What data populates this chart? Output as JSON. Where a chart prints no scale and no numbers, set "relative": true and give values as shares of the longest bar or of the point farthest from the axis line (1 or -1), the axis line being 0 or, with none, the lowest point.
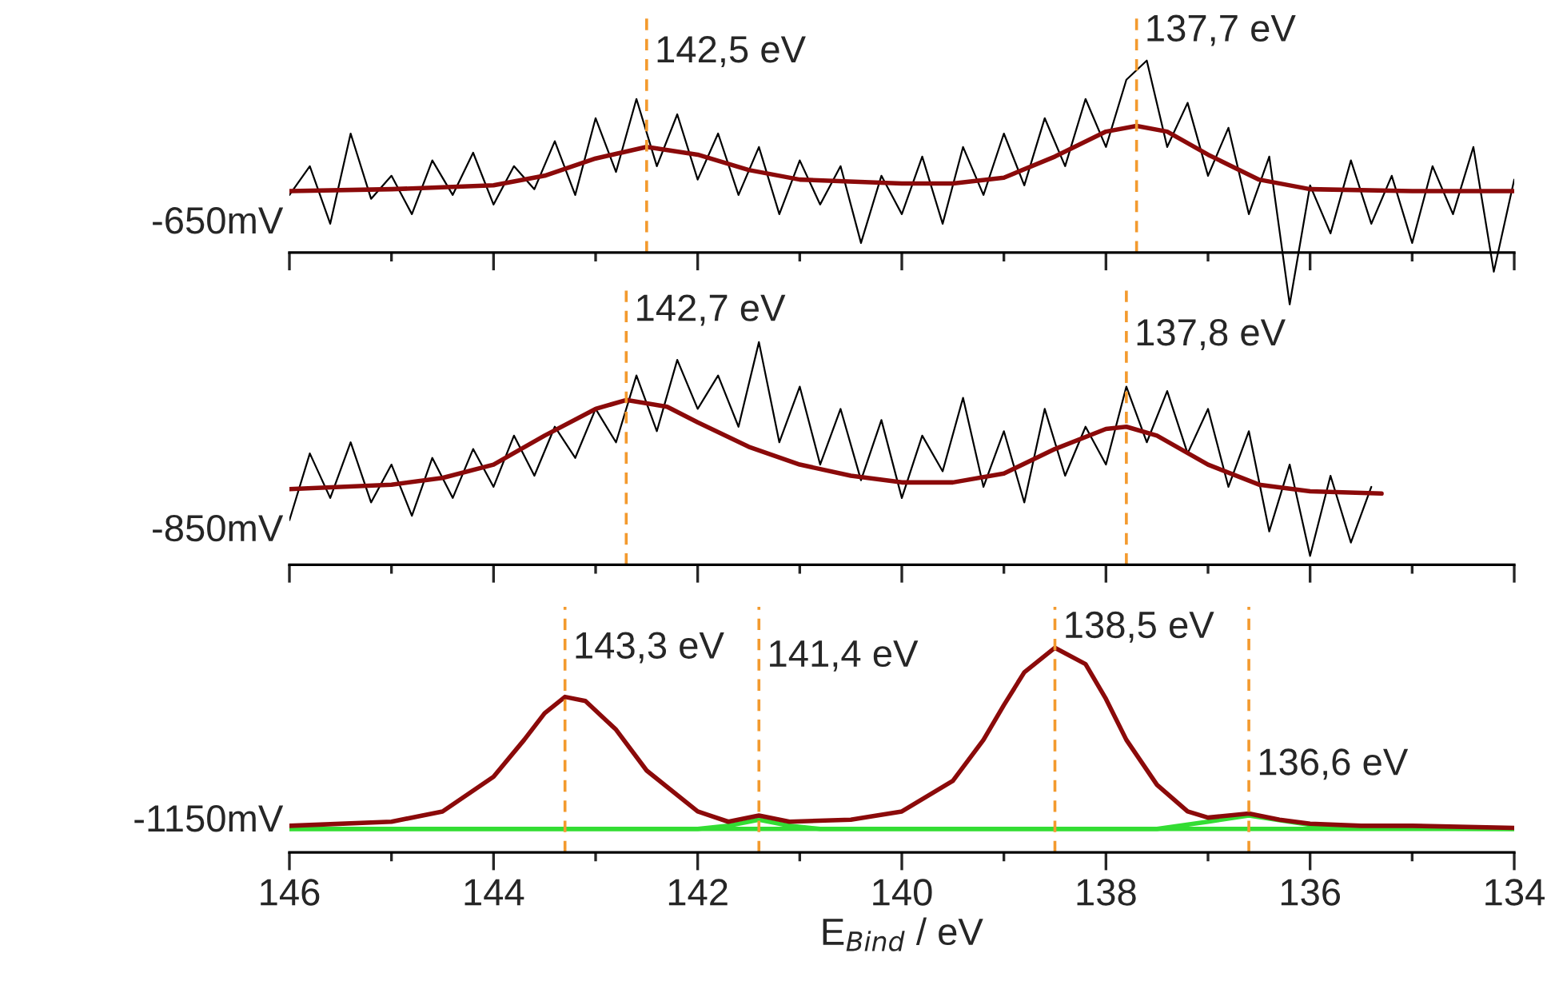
{
  "chart_data": [
    {
      "type": "line",
      "relative": true,
      "ylabel": "-650mV",
      "xlim": [
        146,
        134
      ],
      "tick_labels": false,
      "xticks": [
        146,
        {
          "value": 145,
          "label": null
        },
        144,
        {
          "value": 143,
          "label": null
        },
        142,
        {
          "value": 141,
          "label": null
        },
        140,
        {
          "value": 139,
          "label": null
        },
        138,
        {
          "value": 137,
          "label": null
        },
        136,
        {
          "value": 135,
          "label": null
        },
        134
      ],
      "series": [
        {
          "color": "#000000",
          "x": [
            146,
            145.8,
            145.6,
            145.4,
            145.2,
            145,
            144.8,
            144.6,
            144.4,
            144.2,
            144,
            143.8,
            143.6,
            143.4,
            143.2,
            143,
            142.8,
            142.6,
            142.4,
            142.2,
            142,
            141.8,
            141.6,
            141.4,
            141.2,
            141,
            140.8,
            140.6,
            140.4,
            140.2,
            140,
            139.8,
            139.6,
            139.4,
            139.2,
            139,
            138.8,
            138.6,
            138.4,
            138.2,
            138,
            137.8,
            137.6,
            137.4,
            137.2,
            137,
            136.8,
            136.6,
            136.4,
            136.2,
            136,
            135.8,
            135.6,
            135.4,
            135.2,
            135,
            134.8,
            134.6,
            134.4,
            134.2,
            134
          ],
          "values": [
            0.3,
            0.45,
            0.15,
            0.62,
            0.28,
            0.4,
            0.2,
            0.48,
            0.3,
            0.52,
            0.25,
            0.45,
            0.33,
            0.58,
            0.3,
            0.7,
            0.42,
            0.8,
            0.45,
            0.72,
            0.38,
            0.62,
            0.3,
            0.55,
            0.2,
            0.48,
            0.25,
            0.45,
            0.05,
            0.4,
            0.2,
            0.5,
            0.15,
            0.55,
            0.3,
            0.62,
            0.35,
            0.7,
            0.45,
            0.8,
            0.55,
            0.9,
            1.0,
            0.55,
            0.78,
            0.4,
            0.65,
            0.2,
            0.5,
            -0.27,
            0.35,
            0.1,
            0.48,
            0.15,
            0.4,
            0.05,
            0.45,
            0.2,
            0.55,
            -0.1,
            0.38
          ]
        },
        {
          "color": "#8b0a0a",
          "x": [
            146,
            145,
            144,
            143.5,
            143,
            142.5,
            142,
            141.5,
            141,
            140,
            139.5,
            139,
            138.5,
            138,
            137.7,
            137.4,
            137,
            136.5,
            136,
            135,
            134
          ],
          "values": [
            0.32,
            0.33,
            0.35,
            0.4,
            0.49,
            0.55,
            0.51,
            0.43,
            0.38,
            0.36,
            0.36,
            0.39,
            0.5,
            0.63,
            0.66,
            0.63,
            0.51,
            0.38,
            0.33,
            0.32,
            0.32
          ]
        }
      ],
      "ref_lines": [
        {
          "axis": "x",
          "value": 142.5,
          "label": "142,5 eV",
          "color": "#f39a2e",
          "line_style": "dashed"
        },
        {
          "axis": "x",
          "value": 137.7,
          "label": "137,7 eV",
          "color": "#f39a2e",
          "line_style": "dashed"
        }
      ]
    },
    {
      "type": "line",
      "relative": true,
      "ylabel": "-850mV",
      "xlim": [
        146,
        134
      ],
      "tick_labels": false,
      "xticks": [
        146,
        {
          "value": 145,
          "label": null
        },
        144,
        {
          "value": 143,
          "label": null
        },
        142,
        {
          "value": 141,
          "label": null
        },
        140,
        {
          "value": 139,
          "label": null
        },
        138,
        {
          "value": 137,
          "label": null
        },
        136,
        {
          "value": 135,
          "label": null
        },
        134
      ],
      "series": [
        {
          "color": "#000000",
          "x": [
            146,
            145.8,
            145.6,
            145.4,
            145.2,
            145,
            144.8,
            144.6,
            144.4,
            144.2,
            144,
            143.8,
            143.6,
            143.4,
            143.2,
            143,
            142.8,
            142.6,
            142.4,
            142.2,
            142,
            141.8,
            141.6,
            141.4,
            141.2,
            141,
            140.8,
            140.6,
            140.4,
            140.2,
            140,
            139.8,
            139.6,
            139.4,
            139.2,
            139,
            138.8,
            138.6,
            138.4,
            138.2,
            138,
            137.8,
            137.6,
            137.4,
            137.2,
            137,
            136.8,
            136.6,
            136.4,
            136.2,
            136,
            135.8,
            135.6,
            135.4
          ],
          "values": [
            0.2,
            0.5,
            0.3,
            0.55,
            0.28,
            0.45,
            0.22,
            0.48,
            0.3,
            0.52,
            0.35,
            0.58,
            0.4,
            0.62,
            0.48,
            0.7,
            0.55,
            0.85,
            0.6,
            0.92,
            0.7,
            0.85,
            0.62,
            1.0,
            0.55,
            0.8,
            0.45,
            0.7,
            0.38,
            0.65,
            0.3,
            0.58,
            0.42,
            0.75,
            0.35,
            0.6,
            0.28,
            0.7,
            0.4,
            0.62,
            0.45,
            0.8,
            0.55,
            0.78,
            0.5,
            0.7,
            0.35,
            0.6,
            0.15,
            0.45,
            0.04,
            0.4,
            0.1,
            0.35
          ]
        },
        {
          "color": "#8b0a0a",
          "x": [
            146,
            145,
            144.5,
            144,
            143.5,
            143,
            142.7,
            142.3,
            142,
            141.5,
            141,
            140.5,
            140,
            139.5,
            139,
            138.5,
            138,
            137.8,
            137.5,
            137,
            136.5,
            136,
            135.3
          ],
          "values": [
            0.34,
            0.36,
            0.39,
            0.45,
            0.58,
            0.7,
            0.74,
            0.71,
            0.64,
            0.53,
            0.45,
            0.4,
            0.37,
            0.37,
            0.41,
            0.52,
            0.61,
            0.62,
            0.58,
            0.45,
            0.36,
            0.33,
            0.32
          ]
        }
      ],
      "ref_lines": [
        {
          "axis": "x",
          "value": 142.7,
          "label": "142,7 eV",
          "color": "#f39a2e",
          "line_style": "dashed"
        },
        {
          "axis": "x",
          "value": 137.8,
          "label": "137,8 eV",
          "color": "#f39a2e",
          "line_style": "dashed"
        }
      ]
    },
    {
      "type": "line",
      "relative": true,
      "ylabel": "-1150mV",
      "xlabel": "E$_{Bind}$ / eV",
      "xlim": [
        146,
        134
      ],
      "xticks": [
        146,
        {
          "value": 145,
          "label": null
        },
        144,
        {
          "value": 143,
          "label": null
        },
        142,
        {
          "value": 141,
          "label": null
        },
        140,
        {
          "value": 139,
          "label": null
        },
        138,
        {
          "value": 137,
          "label": null
        },
        136,
        {
          "value": 135,
          "label": null
        },
        134
      ],
      "series": [
        {
          "color": "#33dd33",
          "x": [
            146,
            142,
            141.7,
            141.4,
            141.1,
            140.8,
            134
          ],
          "values": [
            0.115,
            0.115,
            0.13,
            0.16,
            0.13,
            0.115,
            0.115
          ]
        },
        {
          "color": "#33dd33",
          "x": [
            146,
            137.5,
            137,
            136.6,
            136.2,
            135.8,
            134
          ],
          "values": [
            0.115,
            0.115,
            0.15,
            0.18,
            0.15,
            0.12,
            0.115
          ]
        },
        {
          "color": "#8b0a0a",
          "x": [
            146,
            145,
            144.5,
            144,
            143.7,
            143.5,
            143.3,
            143.1,
            142.8,
            142.5,
            142,
            141.7,
            141.4,
            141.1,
            140.5,
            140,
            139.5,
            139.2,
            139,
            138.8,
            138.5,
            138.2,
            138,
            137.8,
            137.5,
            137.2,
            137,
            136.6,
            136.3,
            136,
            135.5,
            135,
            134
          ],
          "values": [
            0.13,
            0.15,
            0.2,
            0.37,
            0.55,
            0.68,
            0.76,
            0.74,
            0.6,
            0.4,
            0.2,
            0.15,
            0.18,
            0.15,
            0.16,
            0.2,
            0.35,
            0.55,
            0.72,
            0.88,
            1.0,
            0.92,
            0.75,
            0.55,
            0.33,
            0.2,
            0.17,
            0.19,
            0.16,
            0.14,
            0.13,
            0.13,
            0.12
          ]
        }
      ],
      "ref_lines": [
        {
          "axis": "x",
          "value": 143.3,
          "label": "143,3 eV",
          "color": "#f39a2e",
          "line_style": "dashed"
        },
        {
          "axis": "x",
          "value": 141.4,
          "label": "141,4 eV",
          "color": "#f39a2e",
          "line_style": "dashed"
        },
        {
          "axis": "x",
          "value": 138.5,
          "label": "138,5 eV",
          "color": "#f39a2e",
          "line_style": "dashed"
        },
        {
          "axis": "x",
          "value": 136.6,
          "label": "136,6 eV",
          "color": "#f39a2e",
          "line_style": "dashed"
        }
      ]
    }
  ]
}
